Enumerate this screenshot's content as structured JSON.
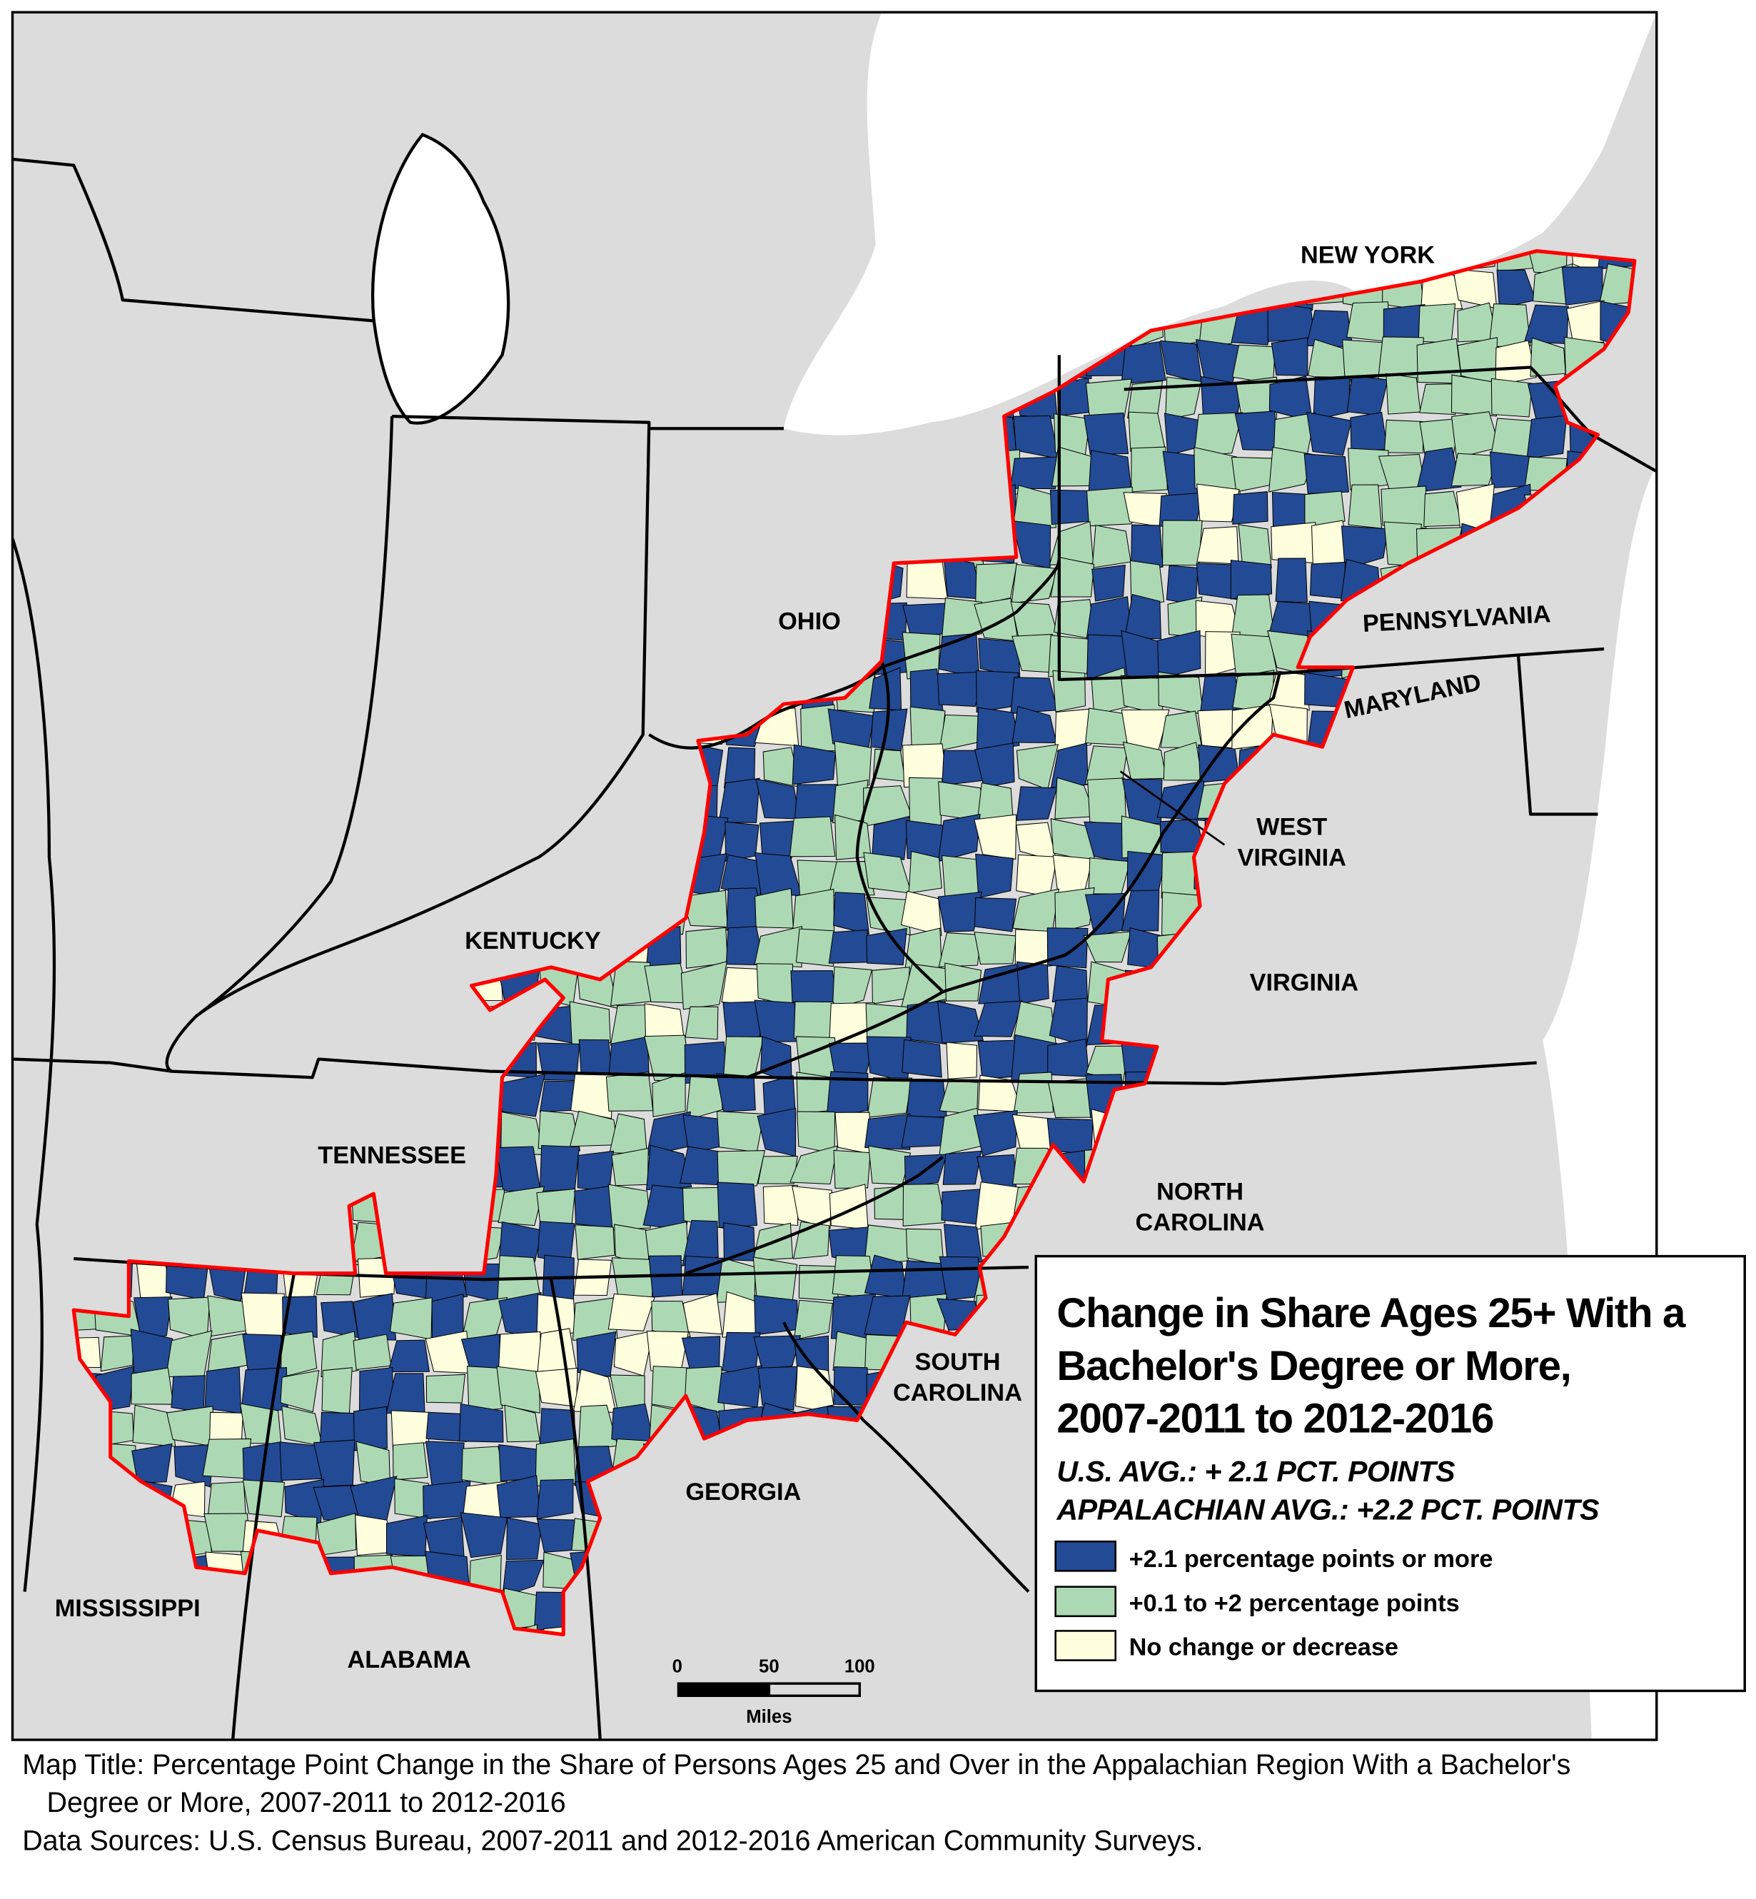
{
  "map": {
    "colors": {
      "land": "#dcdcdc",
      "water": "#ffffff",
      "region_outline": "#ff0000",
      "high": "#234a94",
      "mid": "#acd9b4",
      "low": "#ffffdd"
    },
    "state_labels": [
      {
        "id": "new-york",
        "lines": [
          "NEW YORK"
        ]
      },
      {
        "id": "ohio",
        "lines": [
          "OHIO"
        ]
      },
      {
        "id": "pennsylvania",
        "lines": [
          "PENNSYLVANIA"
        ]
      },
      {
        "id": "maryland",
        "lines": [
          "MARYLAND"
        ]
      },
      {
        "id": "west-virginia",
        "lines": [
          "WEST",
          "VIRGINIA"
        ]
      },
      {
        "id": "kentucky",
        "lines": [
          "KENTUCKY"
        ]
      },
      {
        "id": "virginia",
        "lines": [
          "VIRGINIA"
        ]
      },
      {
        "id": "tennessee",
        "lines": [
          "TENNESSEE"
        ]
      },
      {
        "id": "north-carolina",
        "lines": [
          "NORTH",
          "CAROLINA"
        ]
      },
      {
        "id": "south-carolina",
        "lines": [
          "SOUTH",
          "CAROLINA"
        ]
      },
      {
        "id": "georgia",
        "lines": [
          "GEORGIA"
        ]
      },
      {
        "id": "mississippi",
        "lines": [
          "MISSISSIPPI"
        ]
      },
      {
        "id": "alabama",
        "lines": [
          "ALABAMA"
        ]
      }
    ]
  },
  "legend": {
    "title_lines": [
      "Change in Share Ages 25+ With a",
      "Bachelor's Degree or More,",
      "2007-2011 to 2012-2016"
    ],
    "us_avg": "U.S. AVG.: + 2.1 PCT. POINTS",
    "app_avg": "APPALACHIAN AVG.: +2.2 PCT. POINTS",
    "items": [
      {
        "label": "+2.1 percentage points or more",
        "color": "#234a94"
      },
      {
        "label": "+0.1 to +2 percentage points",
        "color": "#acd9b4"
      },
      {
        "label": "No change or decrease",
        "color": "#ffffdd"
      }
    ]
  },
  "scale_bar": {
    "ticks": [
      "0",
      "50",
      "100"
    ],
    "unit": "Miles"
  },
  "caption": {
    "map_title_line1": "Map Title: Percentage Point Change in the Share of Persons Ages 25 and Over in the Appalachian Region With a Bachelor's",
    "map_title_line2": "Degree or More, 2007-2011 to 2012-2016",
    "sources": "Data Sources: U.S. Census Bureau, 2007-2011 and 2012-2016 American Community Surveys."
  }
}
